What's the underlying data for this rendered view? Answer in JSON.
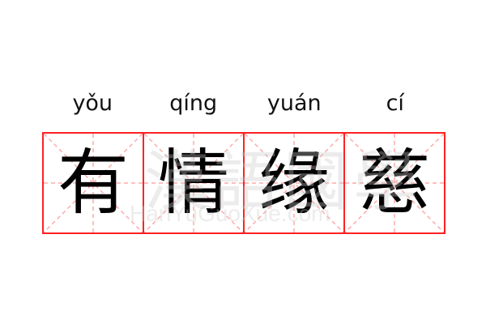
{
  "entries": [
    {
      "pinyin": "yǒu",
      "hanzi": "有"
    },
    {
      "pinyin": "qíng",
      "hanzi": "情"
    },
    {
      "pinyin": "yuán",
      "hanzi": "缘"
    },
    {
      "pinyin": "cí",
      "hanzi": "慈"
    }
  ],
  "watermark": {
    "chinese": "漢語國學",
    "latin": "HanYuGuoXue.com"
  },
  "colors": {
    "grid_border": "#ff2222",
    "guide_lines": "#ffaaaa",
    "text": "#000000"
  }
}
